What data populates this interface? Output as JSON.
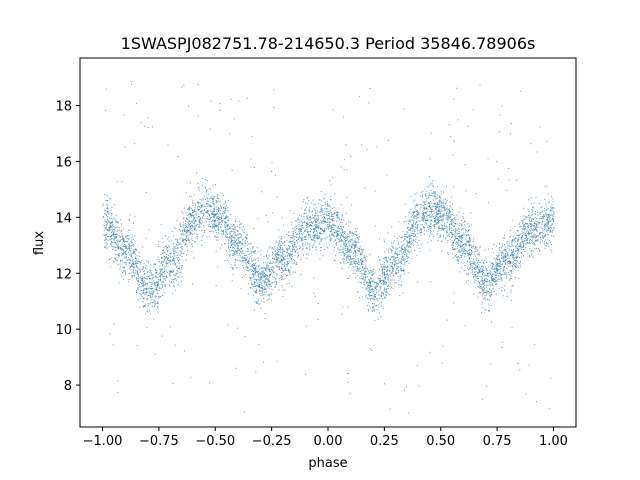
{
  "chart_data": {
    "type": "scatter",
    "title": "1SWASPJ082751.78-214650.3 Period 35846.78906s",
    "xlabel": "phase",
    "ylabel": "flux",
    "xlim": [
      -1.1,
      1.1
    ],
    "ylim": [
      6.5,
      19.7
    ],
    "grid": false,
    "legend": "none",
    "series": [
      {
        "color": "#1f77b4",
        "marker": "point",
        "model": {
          "description_of_shape": "double-humped periodic light curve repeated twice over phase -1 to 1",
          "phase_points": [
            -1.0,
            -0.9,
            -0.8,
            -0.7,
            -0.6,
            -0.55,
            -0.5,
            -0.4,
            -0.3,
            -0.2,
            -0.1,
            0.0,
            0.1,
            0.2,
            0.3,
            0.4,
            0.45,
            0.5,
            0.6,
            0.7,
            0.8,
            0.9,
            1.0
          ],
          "flux_points": [
            13.8,
            12.9,
            11.4,
            12.4,
            13.9,
            14.3,
            14.1,
            13.0,
            11.7,
            12.6,
            13.6,
            13.9,
            12.9,
            11.4,
            12.4,
            13.9,
            14.3,
            14.1,
            13.0,
            11.7,
            12.6,
            13.6,
            13.9
          ],
          "scatter_sigma": 0.45,
          "point_count": 6000,
          "outlier_range": [
            7.0,
            19.0
          ]
        }
      }
    ],
    "x_ticks": [
      -1.0,
      -0.75,
      -0.5,
      -0.25,
      0.0,
      0.25,
      0.5,
      0.75,
      1.0
    ],
    "x_tick_labels": [
      "−1.00",
      "−0.75",
      "−0.50",
      "−0.25",
      "0.00",
      "0.25",
      "0.50",
      "0.75",
      "1.00"
    ],
    "y_ticks": [
      8,
      10,
      12,
      14,
      16,
      18
    ],
    "y_tick_labels": [
      "8",
      "10",
      "12",
      "14",
      "16",
      "18"
    ]
  }
}
